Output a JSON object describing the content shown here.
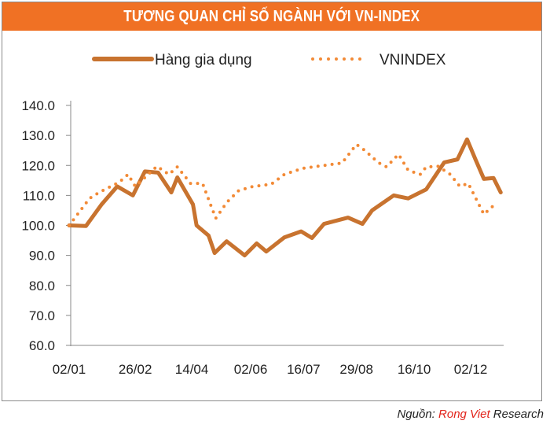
{
  "chart_data": {
    "type": "line",
    "title": "TƯƠNG QUAN CHỈ SỐ NGÀNH VỚI VN-INDEX",
    "xlabel": "",
    "ylabel": "",
    "ylim": [
      60,
      140
    ],
    "yticks": [
      "60.0",
      "70.0",
      "80.0",
      "90.0",
      "100.0",
      "110.0",
      "120.0",
      "130.0",
      "140.0"
    ],
    "xticks": [
      "02/01",
      "26/02",
      "14/04",
      "02/06",
      "16/07",
      "29/08",
      "16/10",
      "02/12"
    ],
    "grid": false,
    "legend": "top",
    "series": [
      {
        "name": "Hàng gia dụng",
        "style": "solid",
        "color": "#c8732f",
        "x": [
          "02/01",
          "16/01",
          "29/01",
          "11/02",
          "24/02",
          "06/03",
          "17/03",
          "28/03",
          "02/04",
          "15/04",
          "18/04",
          "28/04",
          "03/05",
          "13/05",
          "28/05",
          "07/06",
          "15/06",
          "30/06",
          "14/07",
          "23/07",
          "02/08",
          "22/08",
          "03/09",
          "11/09",
          "29/09",
          "11/10",
          "26/10",
          "10/11",
          "21/11",
          "29/11",
          "06/12",
          "13/12",
          "21/12",
          "27/12"
        ],
        "values": [
          100,
          99.8,
          107,
          113,
          110,
          118,
          117.6,
          111,
          116,
          107,
          100,
          96.6,
          90.8,
          94.7,
          90,
          94,
          91.3,
          96,
          98,
          95.8,
          100.5,
          102.6,
          100.5,
          105,
          110,
          109,
          112,
          121,
          122,
          128.7,
          122,
          115.5,
          115.8,
          111
        ]
      },
      {
        "name": "VNINDEX",
        "style": "dotted",
        "color": "#f28a36",
        "x": [
          "02/01",
          "19/01",
          "27/01",
          "13/02",
          "20/02",
          "26/02",
          "16/03",
          "26/03",
          "02/04",
          "13/04",
          "23/04",
          "29/04",
          "04/05",
          "13/05",
          "23/05",
          "04/06",
          "19/06",
          "30/06",
          "15/07",
          "02/08",
          "17/08",
          "29/08",
          "05/09",
          "16/09",
          "23/09",
          "03/10",
          "11/10",
          "21/10",
          "26/10",
          "05/11",
          "15/11",
          "23/11",
          "30/11",
          "13/12",
          "21/12",
          "25/12"
        ],
        "values": [
          100,
          109,
          111,
          114.5,
          117,
          113,
          119.7,
          117,
          119.5,
          114,
          114,
          107.6,
          102.4,
          107.6,
          111.6,
          113,
          113.7,
          117,
          119,
          120,
          120.8,
          127,
          125,
          121,
          119.5,
          123.7,
          118.4,
          117,
          119.5,
          119.7,
          117,
          113,
          114,
          103.7,
          106.6,
          105.8
        ]
      }
    ]
  },
  "header": {
    "title": "TƯƠNG QUAN CHỈ SỐ NGÀNH VỚI VN-INDEX"
  },
  "source": {
    "prefix": "Nguồn: ",
    "brand": "Rong Viet",
    "suffix": " Research"
  }
}
